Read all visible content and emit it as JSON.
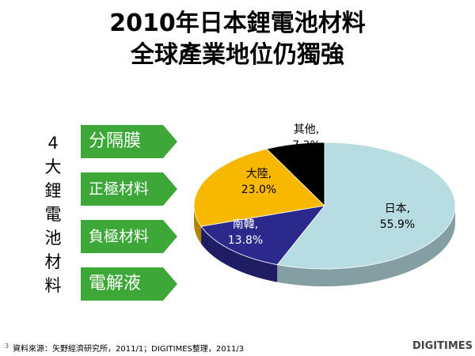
{
  "title": {
    "line1": "2010年日本鋰電池材料",
    "line2": "全球產業地位仍獨強"
  },
  "side_label": [
    "4",
    "大",
    "鋰",
    "電",
    "池",
    "材",
    "料"
  ],
  "materials": [
    {
      "label": "分隔膜"
    },
    {
      "label": "正極材料"
    },
    {
      "label": "負極材料"
    },
    {
      "label": "電解液"
    }
  ],
  "colors": {
    "arrow_green": "#3da838",
    "japan": "#b7dde3",
    "korea": "#2b2a8c",
    "china": "#f8b800",
    "others": "#000000"
  },
  "chart_data": {
    "type": "pie",
    "title": "",
    "slices": [
      {
        "name": "日本,",
        "value": 55.9,
        "value_label": "55.9%"
      },
      {
        "name": "南韓,",
        "value": 13.8,
        "value_label": "13.8%"
      },
      {
        "name": "大陸,",
        "value": 23.0,
        "value_label": "23.0%"
      },
      {
        "name": "其他,",
        "value": 7.3,
        "value_label": "7.3%"
      }
    ]
  },
  "footer": {
    "page_number": "3",
    "source": "資料來源：矢野經濟研究所，2011/1；DIGITIMES整理，2011/3",
    "logo": "DIGITIMES"
  }
}
